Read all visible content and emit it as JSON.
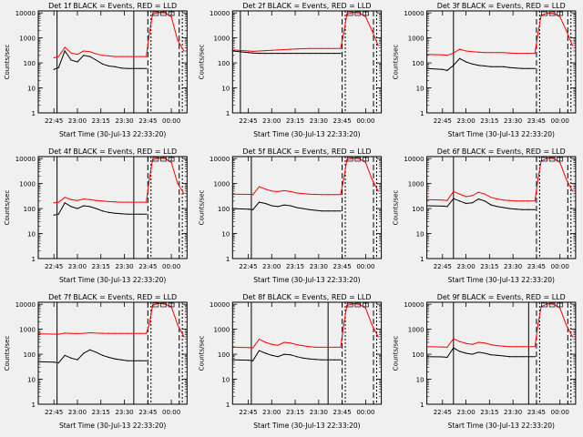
{
  "figure": {
    "background": "#f0f0f0",
    "colors": {
      "events": "#000000",
      "lld": "#ff0000",
      "axis": "#000000"
    }
  },
  "chart_data": [
    {
      "type": "line",
      "title": "Det 1f BLACK = Events, RED = LLD",
      "xlabel": "Start Time (30-Jul-13 22:33:20)",
      "ylabel": "Counts/sec",
      "yscale": "log",
      "ylim": [
        1,
        12000
      ],
      "xticks": [
        "22:45",
        "23:00",
        "23:15",
        "23:30",
        "23:45",
        "00:00"
      ],
      "x": [
        "22:35",
        "22:45",
        "22:48",
        "22:52",
        "22:56",
        "23:00",
        "23:04",
        "23:08",
        "23:12",
        "23:16",
        "23:20",
        "23:24",
        "23:28",
        "23:32",
        "23:36",
        "23:40",
        "23:44",
        "23:46",
        "23:48",
        "23:52",
        "23:56",
        "00:00",
        "00:04",
        "00:08"
      ],
      "series": [
        {
          "name": "Events",
          "values": [
            null,
            55,
            65,
            300,
            130,
            110,
            200,
            180,
            130,
            90,
            75,
            70,
            62,
            60,
            60,
            60,
            60,
            null,
            null,
            null,
            null,
            null,
            null,
            null
          ]
        },
        {
          "name": "LLD",
          "values": [
            null,
            160,
            180,
            420,
            250,
            220,
            300,
            280,
            230,
            200,
            190,
            180,
            180,
            180,
            180,
            180,
            180,
            1500,
            9000,
            10500,
            10000,
            7000,
            800,
            300
          ]
        }
      ],
      "vlines": {
        "solid": [
          "22:47",
          "23:36"
        ],
        "dashed": [
          "23:45",
          "23:47",
          "00:05",
          "00:07"
        ]
      },
      "markers": [
        "23:50",
        "23:55",
        "00:00"
      ]
    },
    {
      "type": "line",
      "title": "Det 2f BLACK = Events, RED = LLD",
      "xlabel": "Start Time (30-Jul-13 22:33:20)",
      "ylabel": "Counts/sec",
      "yscale": "log",
      "ylim": [
        1,
        12000
      ],
      "xticks": [
        "22:45",
        "23:00",
        "23:15",
        "23:30",
        "23:45",
        "00:00"
      ],
      "x": [
        "22:35",
        "22:45",
        "22:48",
        "22:52",
        "22:56",
        "23:00",
        "23:04",
        "23:08",
        "23:12",
        "23:16",
        "23:20",
        "23:24",
        "23:28",
        "23:32",
        "23:36",
        "23:40",
        "23:44",
        "23:46",
        "23:48",
        "23:52",
        "23:56",
        "00:00",
        "00:04",
        "00:08"
      ],
      "series": [
        {
          "name": "Events",
          "values": [
            300,
            260,
            250,
            240,
            240,
            240,
            240,
            240,
            240,
            240,
            240,
            240,
            240,
            240,
            240,
            240,
            240,
            null,
            null,
            null,
            null,
            null,
            null,
            null
          ]
        },
        {
          "name": "LLD",
          "values": [
            330,
            300,
            290,
            300,
            310,
            320,
            330,
            340,
            350,
            360,
            370,
            380,
            380,
            380,
            380,
            380,
            380,
            1500,
            9000,
            10500,
            10000,
            7000,
            2000,
            500
          ]
        }
      ],
      "vlines": {
        "solid": [
          "22:40"
        ],
        "dashed": [
          "23:45",
          "23:47",
          "00:05",
          "00:07"
        ]
      },
      "markers": [
        "23:50",
        "23:55",
        "00:00"
      ]
    },
    {
      "type": "line",
      "title": "Det 3f BLACK = Events, RED = LLD",
      "xlabel": "Start Time (30-Jul-13 22:33:20)",
      "ylabel": "Counts/sec",
      "yscale": "log",
      "ylim": [
        1,
        12000
      ],
      "xticks": [
        "22:45",
        "23:00",
        "23:15",
        "23:30",
        "23:45",
        "00:00"
      ],
      "x": [
        "22:35",
        "22:45",
        "22:48",
        "22:52",
        "22:56",
        "23:00",
        "23:04",
        "23:08",
        "23:12",
        "23:16",
        "23:20",
        "23:24",
        "23:28",
        "23:32",
        "23:36",
        "23:40",
        "23:44",
        "23:46",
        "23:48",
        "23:52",
        "23:56",
        "00:00",
        "00:04",
        "00:08"
      ],
      "series": [
        {
          "name": "Events",
          "values": [
            60,
            55,
            50,
            80,
            150,
            110,
            90,
            80,
            75,
            70,
            70,
            70,
            65,
            62,
            60,
            60,
            60,
            null,
            null,
            null,
            null,
            null,
            null,
            null
          ]
        },
        {
          "name": "LLD",
          "values": [
            220,
            210,
            200,
            250,
            350,
            300,
            280,
            270,
            260,
            260,
            260,
            260,
            250,
            240,
            240,
            240,
            240,
            1500,
            8000,
            10000,
            9500,
            7000,
            2000,
            500
          ]
        }
      ],
      "vlines": {
        "solid": [
          "22:52"
        ],
        "dashed": [
          "23:45",
          "23:47",
          "00:05",
          "00:07"
        ]
      },
      "markers": [
        "23:50",
        "23:55",
        "00:00"
      ]
    },
    {
      "type": "line",
      "title": "Det 4f BLACK = Events, RED = LLD",
      "xlabel": "Start Time (30-Jul-13 22:33:20)",
      "ylabel": "Counts/sec",
      "yscale": "log",
      "ylim": [
        1,
        12000
      ],
      "xticks": [
        "22:45",
        "23:00",
        "23:15",
        "23:30",
        "23:45",
        "00:00"
      ],
      "x": [
        "22:35",
        "22:45",
        "22:48",
        "22:52",
        "22:56",
        "23:00",
        "23:04",
        "23:08",
        "23:12",
        "23:16",
        "23:20",
        "23:24",
        "23:28",
        "23:32",
        "23:36",
        "23:40",
        "23:44",
        "23:46",
        "23:48",
        "23:52",
        "23:56",
        "00:00",
        "00:04",
        "00:08"
      ],
      "series": [
        {
          "name": "Events",
          "values": [
            null,
            55,
            60,
            170,
            120,
            100,
            130,
            120,
            100,
            80,
            70,
            65,
            62,
            60,
            60,
            60,
            60,
            null,
            null,
            null,
            null,
            null,
            null,
            null
          ]
        },
        {
          "name": "LLD",
          "values": [
            null,
            170,
            180,
            280,
            230,
            210,
            240,
            230,
            210,
            200,
            190,
            185,
            180,
            180,
            180,
            180,
            180,
            1500,
            9000,
            10500,
            10000,
            7000,
            1000,
            400
          ]
        }
      ],
      "vlines": {
        "solid": [
          "22:47",
          "23:36"
        ],
        "dashed": [
          "23:45",
          "23:47",
          "00:05",
          "00:07"
        ]
      },
      "markers": [
        "23:50",
        "23:55",
        "00:00"
      ]
    },
    {
      "type": "line",
      "title": "Det 5f BLACK = Events, RED = LLD",
      "xlabel": "Start Time (30-Jul-13 22:33:20)",
      "ylabel": "Counts/sec",
      "yscale": "log",
      "ylim": [
        1,
        12000
      ],
      "xticks": [
        "22:45",
        "23:00",
        "23:15",
        "23:30",
        "23:45",
        "00:00"
      ],
      "x": [
        "22:35",
        "22:45",
        "22:48",
        "22:52",
        "22:56",
        "23:00",
        "23:04",
        "23:08",
        "23:12",
        "23:16",
        "23:20",
        "23:24",
        "23:28",
        "23:32",
        "23:36",
        "23:40",
        "23:44",
        "23:46",
        "23:48",
        "23:52",
        "23:56",
        "00:00",
        "00:04",
        "00:08"
      ],
      "series": [
        {
          "name": "Events",
          "values": [
            100,
            95,
            90,
            180,
            160,
            130,
            120,
            140,
            130,
            110,
            100,
            90,
            85,
            80,
            80,
            80,
            80,
            null,
            null,
            null,
            null,
            null,
            null,
            null
          ]
        },
        {
          "name": "LLD",
          "values": [
            380,
            370,
            360,
            750,
            600,
            500,
            480,
            520,
            480,
            420,
            400,
            380,
            370,
            360,
            360,
            360,
            360,
            1500,
            9000,
            10500,
            10000,
            7000,
            1500,
            500
          ]
        }
      ],
      "vlines": {
        "solid": [
          "22:47"
        ],
        "dashed": [
          "23:45",
          "23:47",
          "00:05",
          "00:07"
        ]
      },
      "markers": [
        "23:50",
        "23:55",
        "00:00"
      ]
    },
    {
      "type": "line",
      "title": "Det 6f BLACK = Events, RED = LLD",
      "xlabel": "Start Time (30-Jul-13 22:33:20)",
      "ylabel": "Counts/sec",
      "yscale": "log",
      "ylim": [
        1,
        12000
      ],
      "xticks": [
        "22:45",
        "23:00",
        "23:15",
        "23:30",
        "23:45",
        "00:00"
      ],
      "x": [
        "22:35",
        "22:45",
        "22:48",
        "22:52",
        "22:56",
        "23:00",
        "23:04",
        "23:08",
        "23:12",
        "23:16",
        "23:20",
        "23:24",
        "23:28",
        "23:32",
        "23:36",
        "23:40",
        "23:44",
        "23:46",
        "23:48",
        "23:52",
        "23:56",
        "00:00",
        "00:04",
        "00:08"
      ],
      "series": [
        {
          "name": "Events",
          "values": [
            130,
            125,
            120,
            250,
            200,
            160,
            170,
            240,
            200,
            140,
            120,
            110,
            100,
            95,
            90,
            90,
            90,
            null,
            null,
            null,
            null,
            null,
            null,
            null
          ]
        },
        {
          "name": "LLD",
          "values": [
            230,
            220,
            210,
            480,
            380,
            300,
            330,
            450,
            380,
            280,
            240,
            220,
            210,
            200,
            200,
            200,
            200,
            1500,
            8000,
            10500,
            10000,
            7000,
            1500,
            500
          ]
        }
      ],
      "vlines": {
        "solid": [
          "22:52"
        ],
        "dashed": [
          "23:45",
          "23:47",
          "00:05",
          "00:07"
        ]
      },
      "markers": [
        "23:50",
        "23:55",
        "00:00"
      ]
    },
    {
      "type": "line",
      "title": "Det 7f BLACK = Events, RED = LLD",
      "xlabel": "Start Time (30-Jul-13 22:33:20)",
      "ylabel": "Counts/sec",
      "yscale": "log",
      "ylim": [
        1,
        12000
      ],
      "xticks": [
        "22:45",
        "23:00",
        "23:15",
        "23:30",
        "23:45",
        "00:00"
      ],
      "x": [
        "22:35",
        "22:45",
        "22:48",
        "22:52",
        "22:56",
        "23:00",
        "23:04",
        "23:08",
        "23:12",
        "23:16",
        "23:20",
        "23:24",
        "23:28",
        "23:32",
        "23:36",
        "23:40",
        "23:44",
        "23:46",
        "23:48",
        "23:52",
        "23:56",
        "00:00",
        "00:04",
        "00:08"
      ],
      "series": [
        {
          "name": "Events",
          "values": [
            50,
            48,
            45,
            90,
            70,
            60,
            110,
            150,
            120,
            90,
            75,
            65,
            60,
            55,
            55,
            55,
            55,
            null,
            null,
            null,
            null,
            null,
            null,
            null
          ]
        },
        {
          "name": "LLD",
          "values": [
            650,
            640,
            630,
            700,
            680,
            670,
            690,
            720,
            700,
            690,
            680,
            680,
            680,
            680,
            680,
            680,
            680,
            1600,
            9000,
            11000,
            10000,
            8000,
            1500,
            500
          ]
        }
      ],
      "vlines": {
        "solid": [
          "22:47",
          "23:36"
        ],
        "dashed": [
          "23:45",
          "23:47",
          "00:05",
          "00:07"
        ]
      },
      "markers": [
        "23:50",
        "23:55",
        "00:00"
      ]
    },
    {
      "type": "line",
      "title": "Det 8f BLACK = Events, RED = LLD",
      "xlabel": "Start Time (30-Jul-13 22:33:20)",
      "ylabel": "Counts/sec",
      "yscale": "log",
      "ylim": [
        1,
        12000
      ],
      "xticks": [
        "22:45",
        "23:00",
        "23:15",
        "23:30",
        "23:45",
        "00:00"
      ],
      "x": [
        "22:35",
        "22:45",
        "22:48",
        "22:52",
        "22:56",
        "23:00",
        "23:04",
        "23:08",
        "23:12",
        "23:16",
        "23:20",
        "23:24",
        "23:28",
        "23:32",
        "23:36",
        "23:40",
        "23:44",
        "23:46",
        "23:48",
        "23:52",
        "23:56",
        "00:00",
        "00:04",
        "00:08"
      ],
      "series": [
        {
          "name": "Events",
          "values": [
            60,
            58,
            55,
            140,
            110,
            90,
            80,
            100,
            95,
            80,
            70,
            65,
            62,
            60,
            60,
            60,
            60,
            null,
            null,
            null,
            null,
            null,
            null,
            null
          ]
        },
        {
          "name": "LLD",
          "values": [
            190,
            185,
            180,
            400,
            300,
            250,
            230,
            300,
            280,
            240,
            220,
            200,
            190,
            190,
            190,
            190,
            190,
            1500,
            9000,
            10500,
            10000,
            7000,
            1500,
            500
          ]
        }
      ],
      "vlines": {
        "solid": [
          "22:47",
          "23:36"
        ],
        "dashed": [
          "23:45",
          "23:47",
          "00:05",
          "00:07"
        ]
      },
      "markers": [
        "23:50",
        "23:55",
        "00:00"
      ]
    },
    {
      "type": "line",
      "title": "Det 9f BLACK = Events, RED = LLD",
      "xlabel": "Start Time (30-Jul-13 22:33:20)",
      "ylabel": "Counts/sec",
      "yscale": "log",
      "ylim": [
        1,
        12000
      ],
      "xticks": [
        "22:45",
        "23:00",
        "23:15",
        "23:30",
        "23:45",
        "00:00"
      ],
      "x": [
        "22:35",
        "22:45",
        "22:48",
        "22:52",
        "22:56",
        "23:00",
        "23:04",
        "23:08",
        "23:12",
        "23:16",
        "23:20",
        "23:24",
        "23:28",
        "23:32",
        "23:36",
        "23:40",
        "23:44",
        "23:46",
        "23:48",
        "23:52",
        "23:56",
        "00:00",
        "00:04",
        "00:08"
      ],
      "series": [
        {
          "name": "Events",
          "values": [
            80,
            78,
            75,
            180,
            130,
            110,
            100,
            120,
            110,
            95,
            90,
            85,
            80,
            80,
            80,
            80,
            80,
            null,
            null,
            null,
            null,
            null,
            null,
            null
          ]
        },
        {
          "name": "LLD",
          "values": [
            200,
            195,
            190,
            420,
            320,
            270,
            250,
            300,
            280,
            240,
            220,
            210,
            200,
            200,
            200,
            200,
            200,
            1500,
            8000,
            10500,
            10000,
            7000,
            1500,
            500
          ]
        }
      ],
      "vlines": {
        "solid": [
          "22:52",
          "23:40"
        ],
        "dashed": [
          "23:45",
          "23:47",
          "00:05",
          "00:07"
        ]
      },
      "markers": [
        "23:50",
        "23:55",
        "00:00"
      ]
    }
  ]
}
